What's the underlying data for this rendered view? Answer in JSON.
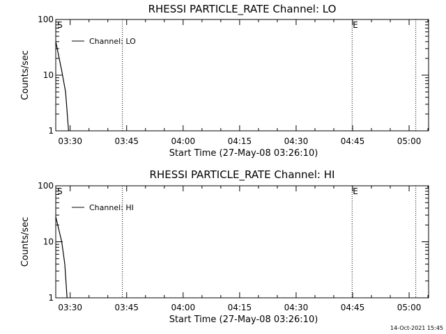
{
  "footer": {
    "timestamp": "14-Oct-2021 15:45"
  },
  "chart_data": [
    {
      "type": "line",
      "title": "RHESSI PARTICLE_RATE Channel: LO",
      "xlabel": "Start Time (27-May-08 03:26:10)",
      "ylabel": "Counts/sec",
      "yscale": "log",
      "ylim": [
        1,
        100
      ],
      "xlim_minutes": [
        0,
        99
      ],
      "y_ticks": [
        {
          "label": "1",
          "value": 1
        },
        {
          "label": "10",
          "value": 10
        },
        {
          "label": "100",
          "value": 100
        }
      ],
      "x_ticks": [
        {
          "label": "03:30",
          "minutes": 3.83
        },
        {
          "label": "03:45",
          "minutes": 18.83
        },
        {
          "label": "04:00",
          "minutes": 33.83
        },
        {
          "label": "04:15",
          "minutes": 48.83
        },
        {
          "label": "04:30",
          "minutes": 63.83
        },
        {
          "label": "04:45",
          "minutes": 78.83
        },
        {
          "label": "05:00",
          "minutes": 93.83
        }
      ],
      "vlines_minutes": [
        17.7,
        78.7,
        95.6
      ],
      "markers": [
        {
          "label": "S",
          "minutes": 0.2
        },
        {
          "label": "E",
          "minutes": 78.7
        }
      ],
      "legend": "Channel: LO",
      "series": [
        {
          "name": "Channel: LO",
          "x_minutes": [
            0.0,
            1.6,
            2.6,
            3.4
          ],
          "values": [
            40,
            12,
            5,
            1
          ]
        }
      ]
    },
    {
      "type": "line",
      "title": "RHESSI PARTICLE_RATE Channel: HI",
      "xlabel": "Start Time (27-May-08 03:26:10)",
      "ylabel": "Counts/sec",
      "yscale": "log",
      "ylim": [
        1,
        100
      ],
      "xlim_minutes": [
        0,
        99
      ],
      "y_ticks": [
        {
          "label": "1",
          "value": 1
        },
        {
          "label": "10",
          "value": 10
        },
        {
          "label": "100",
          "value": 100
        }
      ],
      "x_ticks": [
        {
          "label": "03:30",
          "minutes": 3.83
        },
        {
          "label": "03:45",
          "minutes": 18.83
        },
        {
          "label": "04:00",
          "minutes": 33.83
        },
        {
          "label": "04:15",
          "minutes": 48.83
        },
        {
          "label": "04:30",
          "minutes": 63.83
        },
        {
          "label": "04:45",
          "minutes": 78.83
        },
        {
          "label": "05:00",
          "minutes": 93.83
        }
      ],
      "vlines_minutes": [
        17.7,
        78.7,
        95.6
      ],
      "markers": [
        {
          "label": "S",
          "minutes": 0.2
        },
        {
          "label": "E",
          "minutes": 78.7
        }
      ],
      "legend": "Channel: HI",
      "series": [
        {
          "name": "Channel: HI",
          "x_minutes": [
            0.0,
            1.6,
            2.4,
            3.0
          ],
          "values": [
            28,
            10,
            4,
            1
          ]
        }
      ]
    }
  ]
}
